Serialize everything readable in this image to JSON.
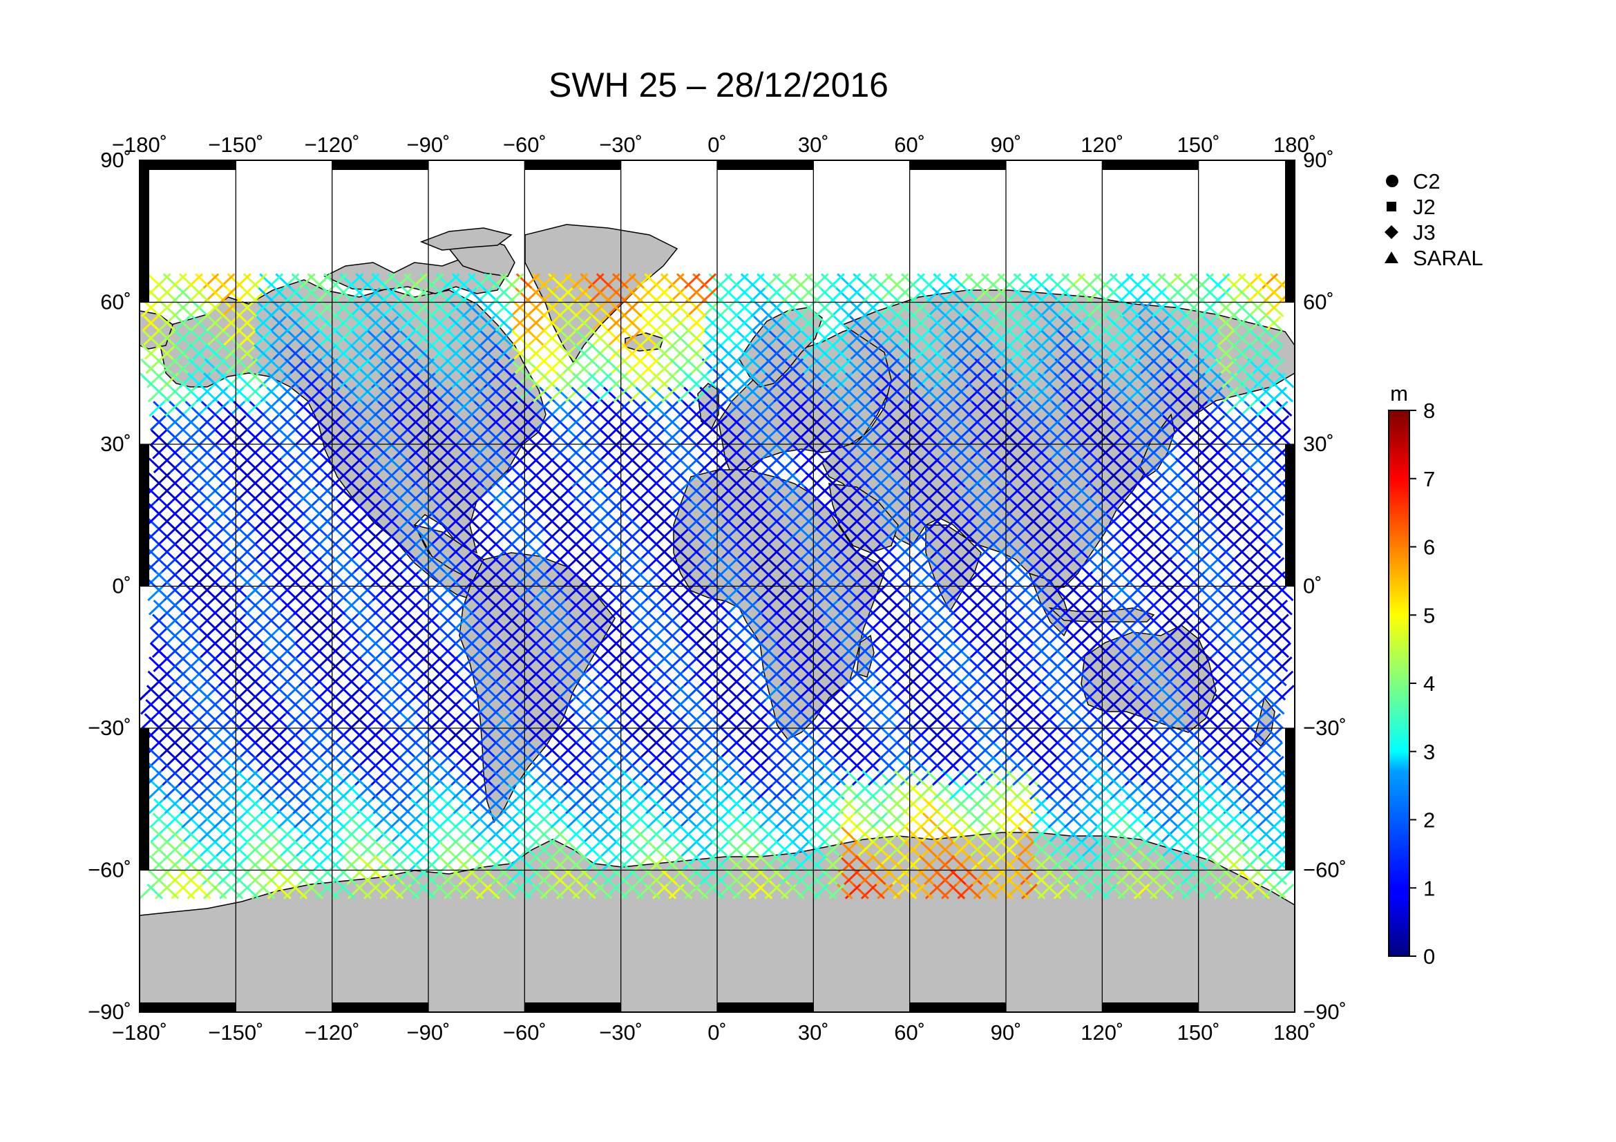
{
  "title": "SWH 25 – 28/12/2016",
  "lon_ticks": [
    "−180˚",
    "−150˚",
    "−120˚",
    "−90˚",
    "−60˚",
    "−30˚",
    "0˚",
    "30˚",
    "60˚",
    "90˚",
    "120˚",
    "150˚",
    "180˚"
  ],
  "lat_ticks_left": [
    "90˚",
    "60˚",
    "30˚",
    "0˚",
    "−30˚",
    "−60˚",
    "−90˚"
  ],
  "lat_ticks_right": [
    "90˚",
    "60˚",
    "30˚",
    "0˚",
    "−30˚",
    "−60˚",
    "−90˚"
  ],
  "legend": {
    "items": [
      {
        "label": "C2",
        "symbol": "circle"
      },
      {
        "label": "J2",
        "symbol": "square"
      },
      {
        "label": "J3",
        "symbol": "diamond"
      },
      {
        "label": "SARAL",
        "symbol": "triangle"
      }
    ]
  },
  "colorbar": {
    "unit": "m",
    "ticks": [
      "0",
      "1",
      "2",
      "3",
      "4",
      "5",
      "6",
      "7",
      "8"
    ],
    "range": [
      0,
      8
    ],
    "colormap": "jet"
  },
  "colors": {
    "land": "#bebebe",
    "ocean": "#ffffff",
    "frame": "#000000",
    "grid": "#000000"
  },
  "map": {
    "projection": "equirectangular",
    "lon_range": [
      -180,
      180
    ],
    "lat_range": [
      -90,
      90
    ],
    "grid_spacing_deg": 30
  }
}
